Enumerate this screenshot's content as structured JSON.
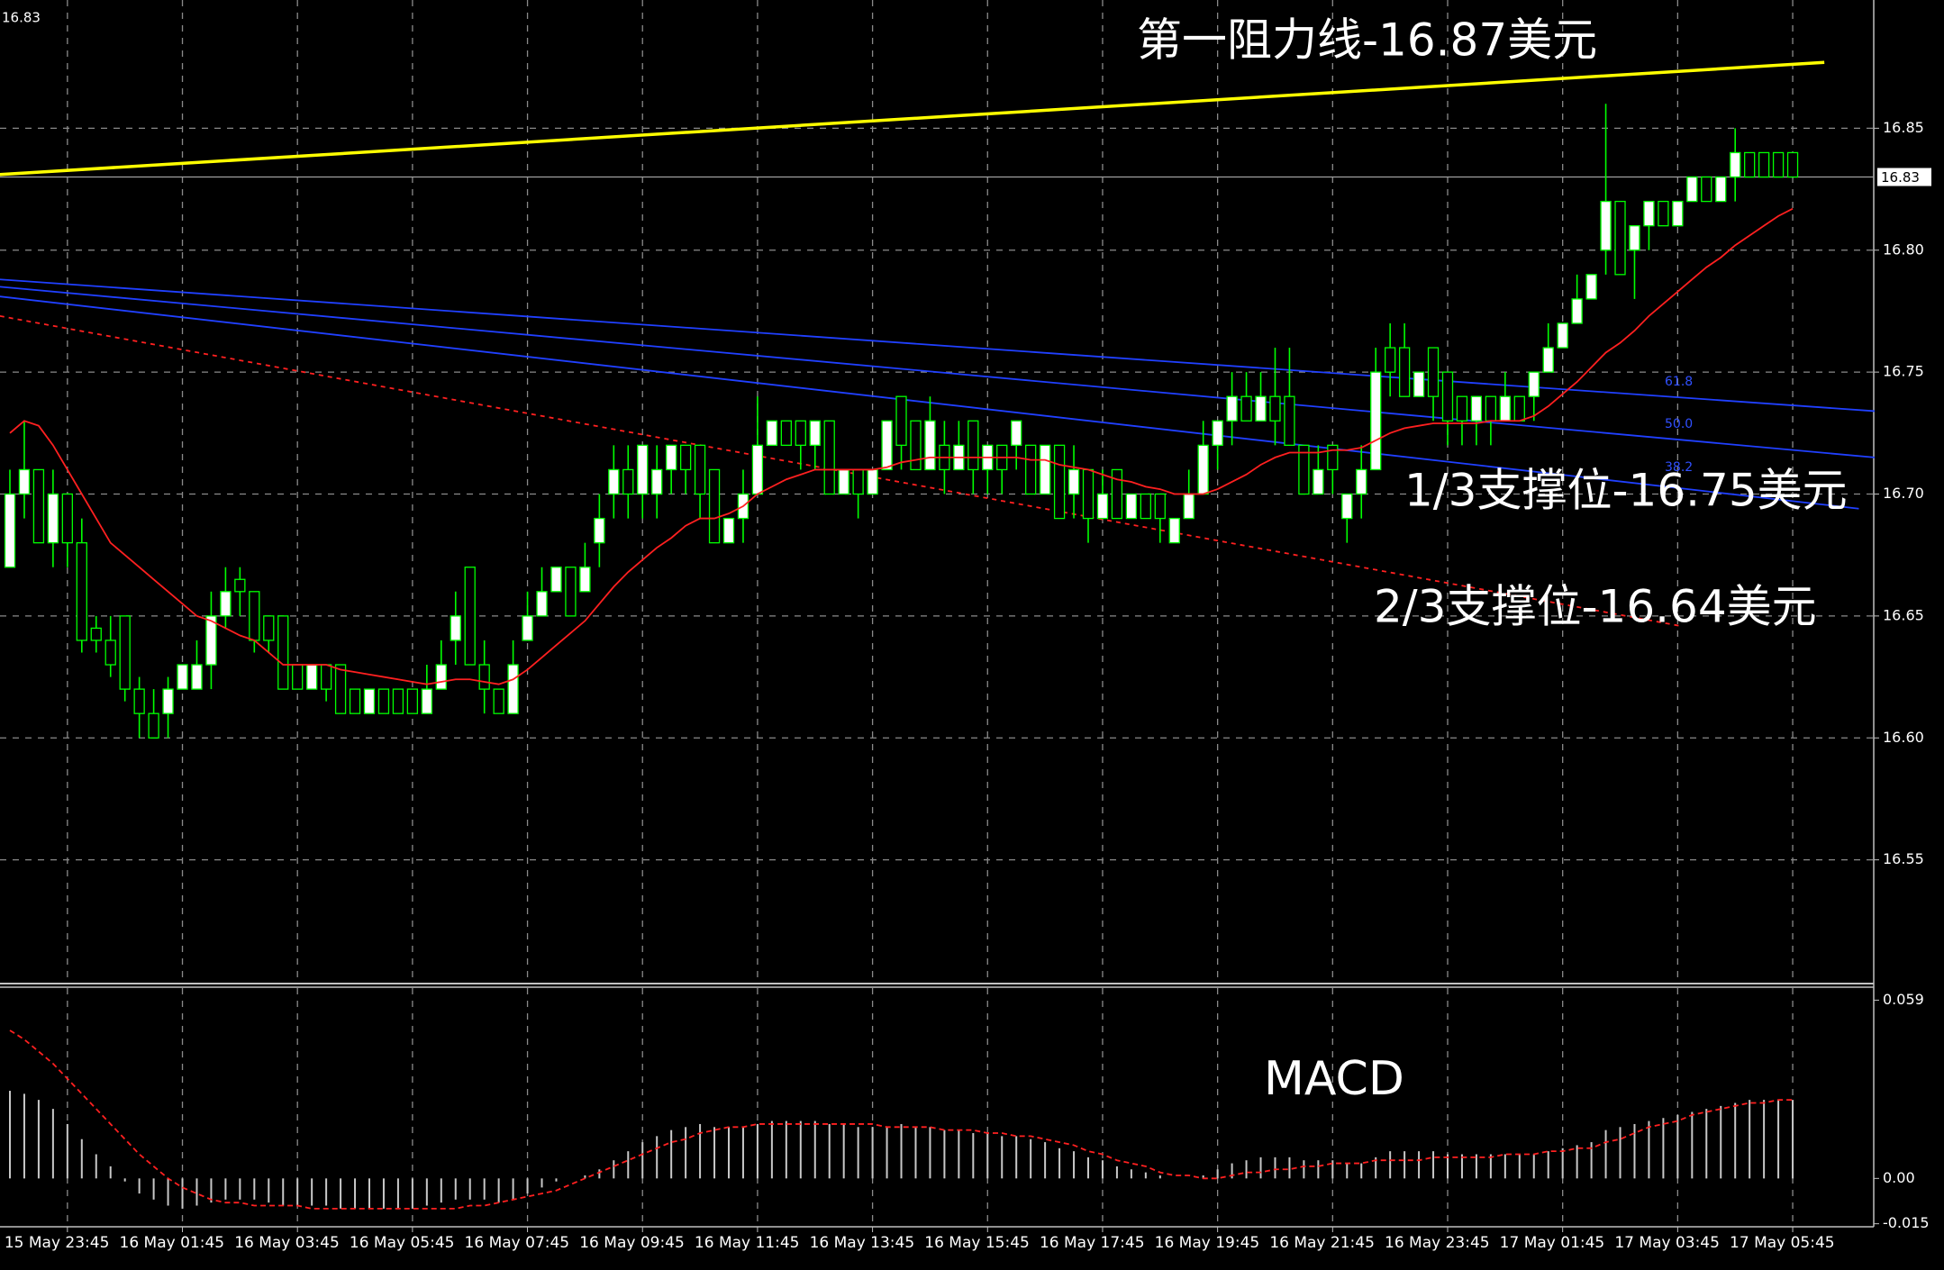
{
  "chart_data": {
    "type": "candlestick",
    "categories": [
      null,
      null,
      null,
      null,
      "15 May 23:45",
      null,
      null,
      null,
      null,
      null,
      null,
      null,
      "16 May 01:45",
      null,
      null,
      null,
      null,
      null,
      null,
      null,
      "16 May 03:45",
      null,
      null,
      null,
      null,
      null,
      null,
      null,
      "16 May 05:45",
      null,
      null,
      null,
      null,
      null,
      null,
      null,
      "16 May 07:45",
      null,
      null,
      null,
      null,
      null,
      null,
      null,
      "16 May 09:45",
      null,
      null,
      null,
      null,
      null,
      null,
      null,
      "16 May 11:45",
      null,
      null,
      null,
      null,
      null,
      null,
      null,
      "16 May 13:45",
      null,
      null,
      null,
      null,
      null,
      null,
      null,
      "16 May 15:45",
      null,
      null,
      null,
      null,
      null,
      null,
      null,
      "16 May 17:45",
      null,
      null,
      null,
      null,
      null,
      null,
      null,
      "16 May 19:45",
      null,
      null,
      null,
      null,
      null,
      null,
      null,
      "16 May 21:45",
      null,
      null,
      null,
      null,
      null,
      null,
      null,
      "16 May 23:45",
      null,
      null,
      null,
      null,
      null,
      null,
      null,
      "17 May 01:45",
      null,
      null,
      null,
      null,
      null,
      null,
      null,
      "17 May 03:45",
      null,
      null,
      null,
      null,
      null,
      null,
      null,
      "17 May 05:45"
    ],
    "open": [
      16.67,
      16.7,
      16.71,
      16.68,
      16.7,
      16.68,
      16.645,
      16.64,
      16.65,
      16.62,
      16.61,
      16.61,
      16.62,
      16.62,
      16.63,
      16.65,
      16.665,
      16.66,
      16.65,
      16.65,
      16.63,
      16.62,
      16.63,
      16.63,
      16.62,
      16.61,
      16.62,
      16.62,
      16.62,
      16.61,
      16.62,
      16.64,
      16.67,
      16.63,
      16.62,
      16.61,
      16.64,
      16.65,
      16.66,
      16.67,
      16.66,
      16.68,
      16.7,
      16.71,
      16.7,
      16.7,
      16.71,
      16.72,
      16.72,
      16.71,
      16.68,
      16.69,
      16.7,
      16.72,
      16.73,
      16.73,
      16.72,
      16.73,
      16.7,
      16.71,
      16.7,
      16.71,
      16.74,
      16.73,
      16.71,
      16.72,
      16.71,
      16.73,
      16.71,
      16.72,
      16.72,
      16.72,
      16.7,
      16.72,
      16.7,
      16.71,
      16.69,
      16.71,
      16.69,
      16.7,
      16.7,
      16.68,
      16.69,
      16.7,
      16.72,
      16.73,
      16.74,
      16.73,
      16.74,
      16.74,
      16.72,
      16.7,
      16.72,
      16.69,
      16.7,
      16.71,
      16.76,
      16.76,
      16.74,
      16.76,
      16.75,
      16.74,
      16.73,
      16.74,
      16.73,
      16.74,
      16.74,
      16.75,
      16.76,
      16.77,
      16.78,
      16.8,
      16.82,
      16.8,
      16.81,
      16.82,
      16.81,
      16.82,
      16.83,
      16.82,
      16.83,
      16.84,
      16.84,
      16.84,
      16.84
    ],
    "high": [
      16.71,
      16.73,
      16.71,
      16.71,
      16.7,
      16.69,
      16.65,
      16.65,
      16.65,
      16.625,
      16.62,
      16.625,
      16.63,
      16.64,
      16.66,
      16.67,
      16.67,
      16.66,
      16.65,
      16.65,
      16.63,
      16.63,
      16.63,
      16.63,
      16.62,
      16.62,
      16.62,
      16.62,
      16.62,
      16.63,
      16.64,
      16.66,
      16.67,
      16.64,
      16.62,
      16.64,
      16.66,
      16.67,
      16.67,
      16.67,
      16.68,
      16.7,
      16.72,
      16.72,
      16.72,
      16.72,
      16.72,
      16.72,
      16.72,
      16.71,
      16.69,
      16.71,
      16.74,
      16.73,
      16.73,
      16.73,
      16.73,
      16.73,
      16.71,
      16.71,
      16.71,
      16.73,
      16.74,
      16.73,
      16.74,
      16.73,
      16.73,
      16.73,
      16.72,
      16.72,
      16.73,
      16.72,
      16.72,
      16.72,
      16.72,
      16.71,
      16.71,
      16.71,
      16.7,
      16.7,
      16.7,
      16.69,
      16.71,
      16.73,
      16.73,
      16.75,
      16.75,
      16.75,
      16.76,
      16.76,
      16.72,
      16.72,
      16.72,
      16.7,
      16.72,
      16.76,
      16.77,
      16.77,
      16.75,
      16.76,
      16.75,
      16.74,
      16.74,
      16.74,
      16.75,
      16.74,
      16.75,
      16.77,
      16.77,
      16.79,
      16.79,
      16.86,
      16.82,
      16.81,
      16.82,
      16.82,
      16.82,
      16.83,
      16.83,
      16.83,
      16.85,
      16.84,
      16.84,
      16.84,
      16.84
    ],
    "low": [
      16.67,
      16.69,
      16.68,
      16.67,
      16.67,
      16.635,
      16.635,
      16.625,
      16.615,
      16.6,
      16.6,
      16.6,
      16.62,
      16.62,
      16.62,
      16.645,
      16.65,
      16.635,
      16.635,
      16.62,
      16.62,
      16.62,
      16.615,
      16.61,
      16.61,
      16.61,
      16.61,
      16.61,
      16.61,
      16.61,
      16.62,
      16.63,
      16.63,
      16.61,
      16.61,
      16.61,
      16.64,
      16.65,
      16.66,
      16.65,
      16.66,
      16.67,
      16.69,
      16.69,
      16.69,
      16.69,
      16.7,
      16.7,
      16.69,
      16.68,
      16.68,
      16.68,
      16.7,
      16.72,
      16.72,
      16.71,
      16.71,
      16.7,
      16.7,
      16.69,
      16.7,
      16.71,
      16.71,
      16.71,
      16.71,
      16.7,
      16.71,
      16.7,
      16.7,
      16.7,
      16.71,
      16.7,
      16.7,
      16.69,
      16.69,
      16.68,
      16.69,
      16.69,
      16.69,
      16.69,
      16.68,
      16.68,
      16.69,
      16.7,
      16.71,
      16.72,
      16.73,
      16.73,
      16.72,
      16.72,
      16.7,
      16.7,
      16.7,
      16.68,
      16.69,
      16.71,
      16.74,
      16.74,
      16.74,
      16.73,
      16.72,
      16.72,
      16.72,
      16.72,
      16.73,
      16.73,
      16.73,
      16.75,
      16.76,
      16.77,
      16.78,
      16.79,
      16.79,
      16.78,
      16.8,
      16.81,
      16.81,
      16.82,
      16.82,
      16.82,
      16.82,
      16.83,
      16.83,
      16.83,
      16.83
    ],
    "close": [
      16.7,
      16.71,
      16.68,
      16.7,
      16.68,
      16.64,
      16.64,
      16.63,
      16.62,
      16.61,
      16.6,
      16.62,
      16.63,
      16.63,
      16.65,
      16.66,
      16.66,
      16.64,
      16.64,
      16.62,
      16.62,
      16.63,
      16.62,
      16.61,
      16.61,
      16.62,
      16.61,
      16.61,
      16.61,
      16.62,
      16.63,
      16.65,
      16.63,
      16.62,
      16.61,
      16.63,
      16.65,
      16.66,
      16.67,
      16.65,
      16.67,
      16.69,
      16.71,
      16.7,
      16.72,
      16.71,
      16.72,
      16.71,
      16.7,
      16.68,
      16.69,
      16.7,
      16.72,
      16.73,
      16.72,
      16.72,
      16.73,
      16.7,
      16.71,
      16.7,
      16.71,
      16.73,
      16.72,
      16.71,
      16.73,
      16.71,
      16.72,
      16.71,
      16.72,
      16.71,
      16.73,
      16.7,
      16.72,
      16.69,
      16.71,
      16.69,
      16.7,
      16.69,
      16.7,
      16.69,
      16.69,
      16.69,
      16.7,
      16.72,
      16.73,
      16.74,
      16.73,
      16.74,
      16.73,
      16.72,
      16.7,
      16.71,
      16.71,
      16.7,
      16.71,
      16.75,
      16.75,
      16.74,
      16.75,
      16.74,
      16.73,
      16.73,
      16.74,
      16.73,
      16.74,
      16.73,
      16.75,
      16.76,
      16.77,
      16.78,
      16.79,
      16.82,
      16.79,
      16.81,
      16.82,
      16.81,
      16.82,
      16.83,
      16.82,
      16.83,
      16.84,
      16.83,
      16.83,
      16.83,
      16.83
    ],
    "up_color": "#ffffff",
    "down_color": "#000000",
    "outline_color": "#00ff00",
    "series": [
      {
        "color": "#ff2020",
        "values": [
          16.725,
          16.73,
          16.728,
          16.72,
          16.71,
          16.7,
          16.69,
          16.68,
          16.675,
          16.67,
          16.665,
          16.66,
          16.655,
          16.65,
          16.648,
          16.645,
          16.642,
          16.64,
          16.635,
          16.63,
          16.63,
          16.63,
          16.63,
          16.628,
          16.627,
          16.626,
          16.625,
          16.624,
          16.623,
          16.622,
          16.623,
          16.624,
          16.624,
          16.623,
          16.622,
          16.624,
          16.628,
          16.633,
          16.638,
          16.643,
          16.648,
          16.655,
          16.662,
          16.668,
          16.673,
          16.678,
          16.682,
          16.687,
          16.69,
          16.69,
          16.692,
          16.695,
          16.7,
          16.703,
          16.706,
          16.708,
          16.71,
          16.71,
          16.71,
          16.71,
          16.71,
          16.711,
          16.713,
          16.714,
          16.715,
          16.715,
          16.715,
          16.715,
          16.715,
          16.715,
          16.715,
          16.714,
          16.714,
          16.712,
          16.711,
          16.71,
          16.708,
          16.706,
          16.705,
          16.703,
          16.702,
          16.7,
          16.7,
          16.7,
          16.702,
          16.705,
          16.708,
          16.712,
          16.715,
          16.717,
          16.717,
          16.717,
          16.718,
          16.718,
          16.719,
          16.722,
          16.725,
          16.727,
          16.728,
          16.729,
          16.729,
          16.729,
          16.729,
          16.73,
          16.73,
          16.73,
          16.732,
          16.736,
          16.741,
          16.746,
          16.752,
          16.758,
          16.762,
          16.767,
          16.773,
          16.778,
          16.783,
          16.788,
          16.793,
          16.797,
          16.802,
          16.806,
          16.81,
          16.814,
          16.817
        ]
      }
    ],
    "trendlines": [
      {
        "color": "#ffff00",
        "x": [
          -0.7,
          126.2
        ],
        "values": [
          16.831,
          16.877
        ]
      },
      {
        "color": "#2040ff",
        "x": [
          -0.7,
          129.7
        ],
        "values": [
          16.788,
          16.734
        ]
      },
      {
        "color": "#2040ff",
        "x": [
          -0.7,
          129.7
        ],
        "values": [
          16.785,
          16.715
        ]
      },
      {
        "color": "#2040ff",
        "x": [
          -0.7,
          128.6
        ],
        "values": [
          16.781,
          16.694
        ]
      },
      {
        "color": "#ff2020",
        "x": [
          -0.7,
          116.1
        ],
        "values": [
          16.773,
          16.646
        ],
        "dashed": true
      }
    ],
    "fibo_labels": [
      "61.8",
      "50.0",
      "38.2"
    ],
    "current_price": 16.83,
    "annotations": [
      "第一阻力线-16.87美元",
      "1/3支撑位-16.75美元",
      "2/3支撑位-16.64美元"
    ],
    "ylim": [
      16.5,
      16.9
    ],
    "yticks": [
      16.55,
      {
        "value": 16.6,
        "label": "16.60"
      },
      16.65,
      {
        "value": 16.7,
        "label": "16.70"
      },
      16.75,
      {
        "value": 16.8,
        "label": "16.80"
      },
      16.85
    ],
    "grid": true,
    "macd": {
      "title": "MACD",
      "histogram_color": "#c8c8c8",
      "signal_color": "#ff2020",
      "histogram": [
        0.029,
        0.028,
        0.026,
        0.023,
        0.018,
        0.013,
        0.008,
        0.004,
        -0.001,
        -0.005,
        -0.007,
        -0.009,
        -0.01,
        -0.009,
        -0.008,
        -0.007,
        -0.007,
        -0.007,
        -0.008,
        -0.009,
        -0.009,
        -0.009,
        -0.009,
        -0.01,
        -0.01,
        -0.01,
        -0.01,
        -0.01,
        -0.01,
        -0.009,
        -0.008,
        -0.007,
        -0.007,
        -0.007,
        -0.008,
        -0.007,
        -0.005,
        -0.003,
        -0.001,
        0,
        0.001,
        0.003,
        0.006,
        0.009,
        0.012,
        0.014,
        0.016,
        0.017,
        0.018,
        0.017,
        0.017,
        0.017,
        0.018,
        0.019,
        0.019,
        0.019,
        0.019,
        0.018,
        0.018,
        0.017,
        0.017,
        0.017,
        0.018,
        0.017,
        0.017,
        0.016,
        0.016,
        0.015,
        0.015,
        0.014,
        0.014,
        0.013,
        0.012,
        0.01,
        0.009,
        0.007,
        0.006,
        0.004,
        0.003,
        0.002,
        0.001,
        0,
        0,
        0.001,
        0.003,
        0.005,
        0.006,
        0.007,
        0.007,
        0.007,
        0.006,
        0.006,
        0.006,
        0.005,
        0.005,
        0.007,
        0.009,
        0.009,
        0.009,
        0.009,
        0.008,
        0.008,
        0.008,
        0.008,
        0.008,
        0.008,
        0.008,
        0.009,
        0.01,
        0.011,
        0.012,
        0.016,
        0.017,
        0.018,
        0.019,
        0.02,
        0.021,
        0.022,
        0.023,
        0.024,
        0.025,
        0.026,
        0.026,
        0.026,
        0.026
      ],
      "signal": [
        0.049,
        0.046,
        0.042,
        0.038,
        0.033,
        0.028,
        0.023,
        0.018,
        0.013,
        0.008,
        0.004,
        0,
        -0.003,
        -0.005,
        -0.007,
        -0.008,
        -0.008,
        -0.009,
        -0.009,
        -0.009,
        -0.009,
        -0.01,
        -0.01,
        -0.01,
        -0.01,
        -0.01,
        -0.01,
        -0.01,
        -0.01,
        -0.01,
        -0.01,
        -0.01,
        -0.009,
        -0.009,
        -0.008,
        -0.007,
        -0.006,
        -0.005,
        -0.004,
        -0.002,
        0,
        0.002,
        0.004,
        0.006,
        0.008,
        0.01,
        0.012,
        0.013,
        0.015,
        0.016,
        0.017,
        0.017,
        0.018,
        0.018,
        0.018,
        0.018,
        0.018,
        0.018,
        0.018,
        0.018,
        0.018,
        0.017,
        0.017,
        0.017,
        0.017,
        0.016,
        0.016,
        0.016,
        0.015,
        0.015,
        0.014,
        0.014,
        0.013,
        0.012,
        0.011,
        0.009,
        0.008,
        0.006,
        0.005,
        0.004,
        0.002,
        0.001,
        0.001,
        0,
        0,
        0.001,
        0.002,
        0.002,
        0.003,
        0.003,
        0.004,
        0.004,
        0.005,
        0.005,
        0.005,
        0.006,
        0.006,
        0.006,
        0.006,
        0.007,
        0.007,
        0.007,
        0.007,
        0.007,
        0.008,
        0.008,
        0.008,
        0.009,
        0.009,
        0.01,
        0.01,
        0.012,
        0.013,
        0.015,
        0.017,
        0.018,
        0.019,
        0.021,
        0.022,
        0.023,
        0.024,
        0.025,
        0.025,
        0.026,
        0.026
      ],
      "ylim": [
        -0.016,
        0.063
      ],
      "yticks": [
        0.059,
        {
          "value": 0,
          "label": "0.00"
        },
        -0.015
      ]
    }
  }
}
